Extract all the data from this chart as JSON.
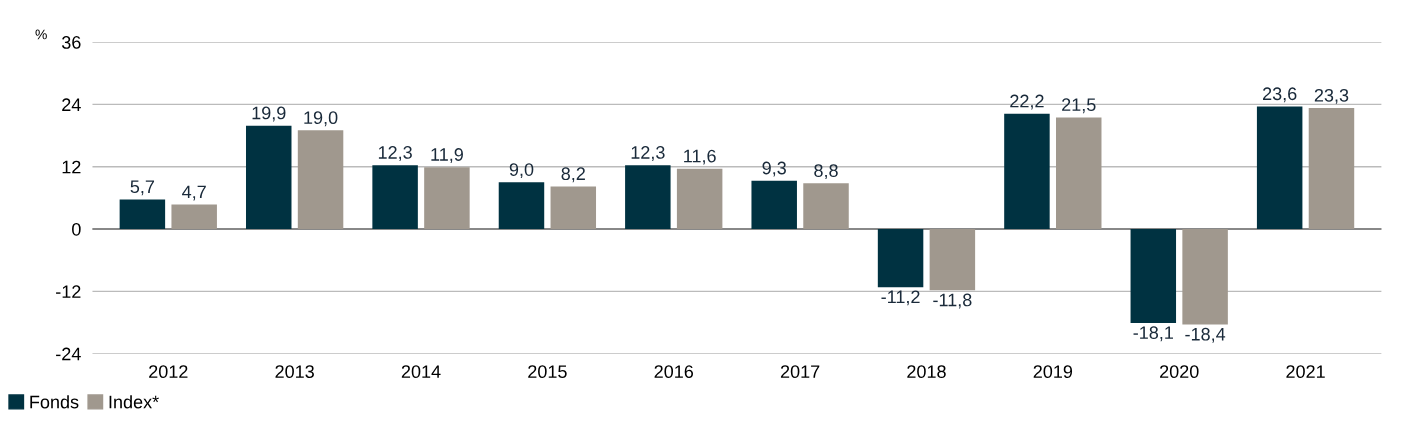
{
  "chart_data": {
    "type": "bar",
    "ylabel": "%",
    "categories": [
      "2012",
      "2013",
      "2014",
      "2015",
      "2016",
      "2017",
      "2018",
      "2019",
      "2020",
      "2021"
    ],
    "series": [
      {
        "name": "Fonds",
        "color": "#003241",
        "values": [
          5.7,
          19.9,
          12.3,
          9.0,
          12.3,
          9.3,
          -11.2,
          22.2,
          -18.1,
          23.6
        ],
        "value_labels": [
          "5,7",
          "19,9",
          "12,3",
          "9,0",
          "12,3",
          "9,3",
          "-11,2",
          "22,2",
          "-18,1",
          "23,6"
        ]
      },
      {
        "name": "Index*",
        "color": "#a0988e",
        "values": [
          4.7,
          19.0,
          11.9,
          8.2,
          11.6,
          8.8,
          -11.8,
          21.5,
          -18.4,
          23.3
        ],
        "value_labels": [
          "4,7",
          "19,0",
          "11,9",
          "8,2",
          "11,6",
          "8,8",
          "-11,8",
          "21,5",
          "-18,4",
          "23,3"
        ]
      }
    ],
    "ylim": [
      -24,
      36
    ],
    "yticks": [
      -24,
      -12,
      0,
      12,
      24,
      36
    ],
    "grid": "y",
    "legend": "bottom left"
  }
}
